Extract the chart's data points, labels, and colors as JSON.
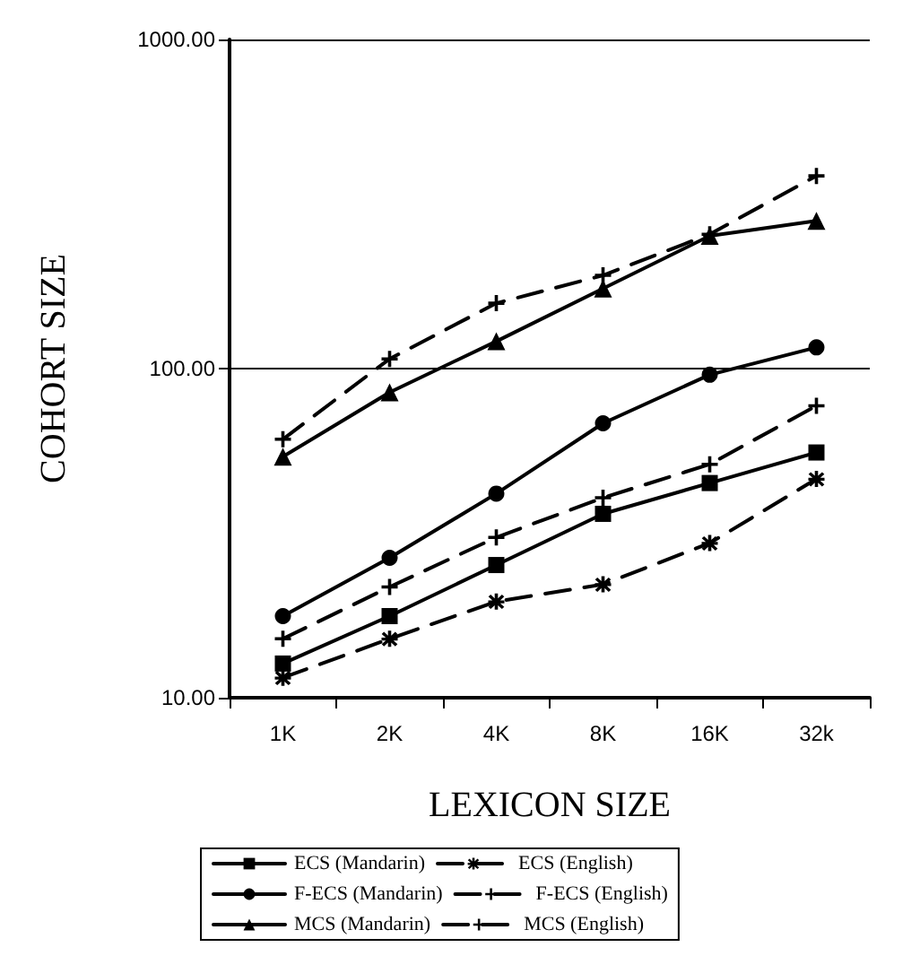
{
  "chart_data": {
    "type": "line",
    "xlabel": "LEXICON SIZE",
    "ylabel": "COHORT SIZE",
    "categories": [
      "1K",
      "2K",
      "4K",
      "8K",
      "16K",
      "32k"
    ],
    "series": [
      {
        "name": "ECS (Mandarin)",
        "color": "#000000",
        "marker": "square",
        "line_style": "solid",
        "values": [
          12.7,
          17.7,
          25.3,
          36.2,
          44.9,
          55.6
        ]
      },
      {
        "name": "ECS (English)",
        "color": "#000000",
        "marker": "star",
        "line_style": "dashed",
        "values": [
          11.5,
          15.1,
          19.6,
          22.1,
          29.5,
          46.2
        ]
      },
      {
        "name": "F-ECS (Mandarin)",
        "color": "#000000",
        "marker": "circle",
        "line_style": "solid",
        "values": [
          17.7,
          26.6,
          41.7,
          68.2,
          95.8,
          116
        ]
      },
      {
        "name": "F-ECS (English)",
        "color": "#000000",
        "marker": "cross",
        "line_style": "dashed",
        "values": [
          15.1,
          21.7,
          30.7,
          40.5,
          51.2,
          77.1
        ]
      },
      {
        "name": "MCS (Mandarin)",
        "color": "#000000",
        "marker": "triangle",
        "line_style": "solid",
        "values": [
          54,
          84.7,
          121,
          175,
          253,
          281
        ]
      },
      {
        "name": "MCS (English)",
        "color": "#000000",
        "marker": "cross",
        "line_style": "dashed",
        "values": [
          61,
          107,
          158,
          192,
          256,
          385
        ]
      }
    ],
    "log": "y",
    "ylim": [
      10,
      1000
    ],
    "yticks": [
      {
        "value": 10,
        "label": "10.00"
      },
      {
        "value": 100,
        "label": "100.00"
      },
      {
        "value": 1000,
        "label": "1000.00"
      }
    ],
    "grid": "y",
    "legend": "bottom"
  }
}
